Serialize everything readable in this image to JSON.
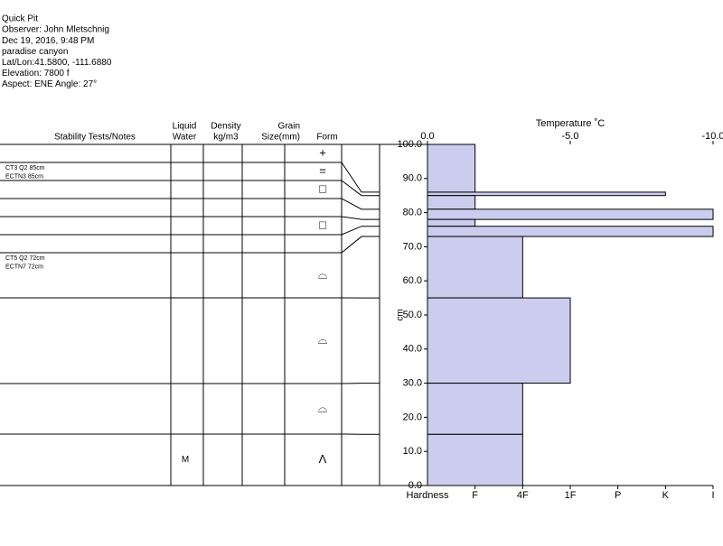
{
  "header": {
    "lines": [
      "Quick Pit",
      "Observer: John Mletschnig",
      "Dec 19, 2016, 9:48 PM",
      "paradise canyon",
      "Lat/Lon:41.5800, -111.6880",
      "Elevation: 7800 f",
      "Aspect: ENE Angle: 27°"
    ]
  },
  "table": {
    "columns": [
      [
        "Stability Tests/Notes"
      ],
      [
        "Liquid",
        "Water"
      ],
      [
        "Density",
        "kg/m3"
      ],
      [
        "Grain",
        "Size(mm)"
      ],
      [
        "Form"
      ]
    ]
  },
  "chart_data": {
    "type": "snow-profile",
    "color": "#ccccee",
    "x_label": "Hardness",
    "x2_label": "Temperature ˚C",
    "y_label": "cm",
    "xlim": [
      0,
      6
    ],
    "xticks": [
      {
        "value": 1,
        "label": "F"
      },
      {
        "value": 2,
        "label": "4F"
      },
      {
        "value": 3,
        "label": "1F"
      },
      {
        "value": 4,
        "label": "P"
      },
      {
        "value": 5,
        "label": "K"
      },
      {
        "value": 6,
        "label": "I"
      }
    ],
    "x2lim": [
      0,
      -10
    ],
    "x2ticks": [
      {
        "value": 0,
        "label": "0.0"
      },
      {
        "value": -5,
        "label": "-5.0"
      },
      {
        "value": -10,
        "label": "-10.0"
      }
    ],
    "ylim": [
      0,
      100
    ],
    "yticks": [
      {
        "value": 0,
        "label": "0.0"
      },
      {
        "value": 10,
        "label": "10.0"
      },
      {
        "value": 20,
        "label": "20.0"
      },
      {
        "value": 30,
        "label": "30.0"
      },
      {
        "value": 40,
        "label": "40.0"
      },
      {
        "value": 50,
        "label": "50.0"
      },
      {
        "value": 60,
        "label": "60.0"
      },
      {
        "value": 70,
        "label": "70.0"
      },
      {
        "value": 80,
        "label": "80.0"
      },
      {
        "value": 90,
        "label": "90.0"
      },
      {
        "value": 100,
        "label": "100.0"
      }
    ],
    "layers": [
      {
        "top": 100,
        "bottom": 86,
        "hardness": 1,
        "form": "+"
      },
      {
        "top": 86,
        "bottom": 85,
        "hardness": 5,
        "form": "=",
        "notes": [
          "CT3 Q2 85cm",
          "ECTN3 85cm"
        ]
      },
      {
        "top": 85,
        "bottom": 81,
        "hardness": 1,
        "form": "□"
      },
      {
        "top": 81,
        "bottom": 78,
        "hardness": 6
      },
      {
        "top": 78,
        "bottom": 76,
        "hardness": 1,
        "form": "□"
      },
      {
        "top": 76,
        "bottom": 73,
        "hardness": 6
      },
      {
        "top": 73,
        "bottom": 55,
        "hardness": 2,
        "form": "⌓",
        "notes": [
          "CT5 Q2 72cm",
          "ECTN7 72cm"
        ]
      },
      {
        "top": 55,
        "bottom": 30,
        "hardness": 3,
        "form": "⌓"
      },
      {
        "top": 30,
        "bottom": 15,
        "hardness": 2,
        "form": "⌓"
      },
      {
        "top": 15,
        "bottom": 0,
        "hardness": 2,
        "form": "Λ",
        "liquid_water": "M"
      }
    ]
  }
}
